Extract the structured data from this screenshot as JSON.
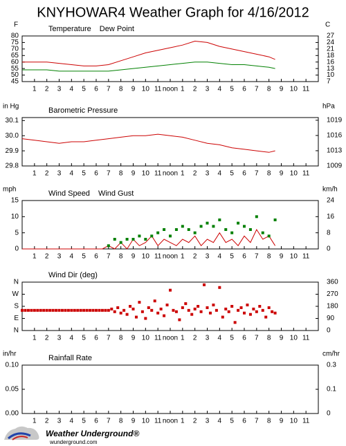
{
  "title": "KNYHOWAR4 Weather Graph for 4/16/2012",
  "logo": {
    "name": "Weather Underground®",
    "url": "wunderground.com"
  },
  "chart_data": [
    {
      "type": "line",
      "y_label": "F",
      "y2_label": "C",
      "xlim": [
        0,
        24
      ],
      "xticks": [
        1,
        2,
        3,
        4,
        5,
        6,
        7,
        8,
        9,
        10,
        11,
        {
          "value": 12,
          "label": "noon"
        },
        {
          "value": 13,
          "label": "1"
        },
        {
          "value": 14,
          "label": "2"
        },
        {
          "value": 15,
          "label": "3"
        },
        {
          "value": 16,
          "label": "4"
        },
        {
          "value": 17,
          "label": "5"
        },
        {
          "value": 18,
          "label": "6"
        },
        {
          "value": 19,
          "label": "7"
        },
        {
          "value": 20,
          "label": "8"
        },
        {
          "value": 21,
          "label": "9"
        },
        {
          "value": 22,
          "label": "10"
        },
        {
          "value": 23,
          "label": "11"
        }
      ],
      "ylim": [
        45,
        80
      ],
      "yticks": [
        45,
        50,
        55,
        60,
        65,
        70,
        75,
        80
      ],
      "y2lim": [
        7.22,
        26.67
      ],
      "y2ticks": [
        {
          "value": 7.22,
          "label": "7"
        },
        {
          "value": 10,
          "label": "10"
        },
        {
          "value": 12.78,
          "label": "13"
        },
        {
          "value": 15.56,
          "label": "16"
        },
        {
          "value": 18.33,
          "label": "18"
        },
        {
          "value": 21.11,
          "label": "21"
        },
        {
          "value": 23.89,
          "label": "24"
        },
        {
          "value": 26.67,
          "label": "27"
        }
      ],
      "series": [
        {
          "name": "Temperature",
          "color": "#cc0000",
          "mark": "line",
          "x": [
            0,
            1,
            2,
            3,
            4,
            5,
            6,
            7,
            8,
            9,
            10,
            11,
            12,
            13,
            14,
            15,
            16,
            17,
            18,
            19,
            20,
            20.5
          ],
          "values": [
            60,
            60,
            60,
            59,
            58,
            57,
            57,
            58,
            61,
            64,
            67,
            69,
            71,
            73,
            76,
            75,
            72,
            70,
            68,
            66,
            64,
            62
          ]
        },
        {
          "name": "Dew Point",
          "color": "#008000",
          "mark": "line",
          "x": [
            0,
            1,
            2,
            3,
            4,
            5,
            6,
            7,
            8,
            9,
            10,
            11,
            12,
            13,
            14,
            15,
            16,
            17,
            18,
            19,
            20,
            20.5
          ],
          "values": [
            54,
            54,
            54,
            53,
            53,
            53,
            53,
            53,
            54,
            55,
            56,
            57,
            58,
            59,
            60,
            60,
            59,
            58,
            58,
            57,
            56,
            55
          ]
        }
      ]
    },
    {
      "type": "line",
      "y_label": "in Hg",
      "y2_label": "hPa",
      "xlim": [
        0,
        24
      ],
      "xticks": [
        1,
        2,
        3,
        4,
        5,
        6,
        7,
        8,
        9,
        10,
        11,
        {
          "value": 12,
          "label": "noon"
        },
        {
          "value": 13,
          "label": "1"
        },
        {
          "value": 14,
          "label": "2"
        },
        {
          "value": 15,
          "label": "3"
        },
        {
          "value": 16,
          "label": "4"
        },
        {
          "value": 17,
          "label": "5"
        },
        {
          "value": 18,
          "label": "6"
        },
        {
          "value": 19,
          "label": "7"
        },
        {
          "value": 20,
          "label": "8"
        },
        {
          "value": 21,
          "label": "9"
        },
        {
          "value": 22,
          "label": "10"
        },
        {
          "value": 23,
          "label": "11"
        }
      ],
      "ylim": [
        29.8,
        30.12
      ],
      "yticks": [
        29.8,
        29.9,
        {
          "value": 30.0,
          "label": "30.0"
        },
        30.1
      ],
      "y2lim": [
        1009.1,
        1019.9
      ],
      "y2ticks": [
        {
          "value": 1009.1,
          "label": "1009"
        },
        {
          "value": 1012.5,
          "label": "1013"
        },
        {
          "value": 1015.9,
          "label": "1016"
        },
        {
          "value": 1019.3,
          "label": "1019"
        }
      ],
      "series": [
        {
          "name": "Barometric Pressure",
          "color": "#cc0000",
          "mark": "line",
          "x": [
            0,
            1,
            2,
            3,
            4,
            5,
            6,
            7,
            8,
            9,
            10,
            11,
            12,
            13,
            14,
            15,
            16,
            17,
            18,
            19,
            20,
            20.5
          ],
          "values": [
            29.98,
            29.97,
            29.96,
            29.95,
            29.96,
            29.96,
            29.97,
            29.98,
            29.99,
            30.0,
            30.0,
            30.01,
            30.0,
            29.99,
            29.97,
            29.95,
            29.94,
            29.92,
            29.91,
            29.9,
            29.89,
            29.9
          ]
        }
      ]
    },
    {
      "type": "line",
      "y_label": "mph",
      "y2_label": "km/h",
      "xlim": [
        0,
        24
      ],
      "xticks": [
        1,
        2,
        3,
        4,
        5,
        6,
        7,
        8,
        9,
        10,
        11,
        {
          "value": 12,
          "label": "noon"
        },
        {
          "value": 13,
          "label": "1"
        },
        {
          "value": 14,
          "label": "2"
        },
        {
          "value": 15,
          "label": "3"
        },
        {
          "value": 16,
          "label": "4"
        },
        {
          "value": 17,
          "label": "5"
        },
        {
          "value": 18,
          "label": "6"
        },
        {
          "value": 19,
          "label": "7"
        },
        {
          "value": 20,
          "label": "8"
        },
        {
          "value": 21,
          "label": "9"
        },
        {
          "value": 22,
          "label": "10"
        },
        {
          "value": 23,
          "label": "11"
        }
      ],
      "ylim": [
        0,
        15
      ],
      "yticks": [
        0,
        5,
        10,
        15
      ],
      "y2lim": [
        0,
        24.14
      ],
      "y2ticks": [
        0,
        {
          "value": 8.05,
          "label": "8"
        },
        {
          "value": 16.09,
          "label": "16"
        },
        {
          "value": 24.14,
          "label": "24"
        }
      ],
      "series": [
        {
          "name": "Wind Speed",
          "color": "#cc0000",
          "mark": "line",
          "x": [
            0,
            0.5,
            1,
            1.5,
            2,
            2.5,
            3,
            3.5,
            4,
            4.5,
            5,
            5.5,
            6,
            6.5,
            7,
            7.5,
            8,
            8.5,
            9,
            9.5,
            10,
            10.5,
            11,
            11.5,
            12,
            12.5,
            13,
            13.5,
            14,
            14.5,
            15,
            15.5,
            16,
            16.5,
            17,
            17.5,
            18,
            18.5,
            19,
            19.5,
            20,
            20.5
          ],
          "values": [
            0,
            0,
            0,
            0,
            0,
            0,
            0,
            0,
            0,
            0,
            0,
            0,
            0,
            0,
            1,
            0,
            2,
            0,
            3,
            1,
            2,
            4,
            1,
            3,
            2,
            1,
            3,
            2,
            4,
            1,
            3,
            2,
            5,
            2,
            3,
            1,
            4,
            2,
            6,
            3,
            4,
            1
          ]
        },
        {
          "name": "Wind Gust",
          "color": "#008000",
          "mark": "scatter",
          "x": [
            7,
            7.5,
            8,
            8.5,
            9,
            9.5,
            10,
            10.5,
            11,
            11.5,
            12,
            12.5,
            13,
            13.5,
            14,
            14.5,
            15,
            15.5,
            16,
            16.5,
            17,
            17.5,
            18,
            18.5,
            19,
            19.5,
            20,
            20.5
          ],
          "values": [
            1,
            3,
            2,
            3,
            3,
            4,
            3,
            4,
            5,
            6,
            4,
            6,
            7,
            6,
            5,
            7,
            8,
            7,
            9,
            6,
            5,
            8,
            7,
            6,
            10,
            5,
            4,
            9
          ]
        }
      ]
    },
    {
      "type": "scatter",
      "xlim": [
        0,
        24
      ],
      "xticks": [
        1,
        2,
        3,
        4,
        5,
        6,
        7,
        8,
        9,
        10,
        11,
        {
          "value": 12,
          "label": "noon"
        },
        {
          "value": 13,
          "label": "1"
        },
        {
          "value": 14,
          "label": "2"
        },
        {
          "value": 15,
          "label": "3"
        },
        {
          "value": 16,
          "label": "4"
        },
        {
          "value": 17,
          "label": "5"
        },
        {
          "value": 18,
          "label": "6"
        },
        {
          "value": 19,
          "label": "7"
        },
        {
          "value": 20,
          "label": "8"
        },
        {
          "value": 21,
          "label": "9"
        },
        {
          "value": 22,
          "label": "10"
        },
        {
          "value": 23,
          "label": "11"
        }
      ],
      "ylim": [
        0,
        360
      ],
      "yticks": [
        {
          "value": 0,
          "label": "N"
        },
        {
          "value": 90,
          "label": "E"
        },
        {
          "value": 180,
          "label": "S"
        },
        {
          "value": 270,
          "label": "W"
        },
        {
          "value": 360,
          "label": "N"
        }
      ],
      "y2lim": [
        0,
        360
      ],
      "y2ticks": [
        0,
        90,
        180,
        270,
        360
      ],
      "series": [
        {
          "name": "Wind Dir (deg)",
          "color": "#cc0000",
          "mark": "scatter",
          "x": [
            0,
            0.25,
            0.5,
            0.75,
            1,
            1.25,
            1.5,
            1.75,
            2,
            2.25,
            2.5,
            2.75,
            3,
            3.25,
            3.5,
            3.75,
            4,
            4.25,
            4.5,
            4.75,
            5,
            5.25,
            5.5,
            5.75,
            6,
            6.25,
            6.5,
            6.75,
            7,
            7.25,
            7.5,
            7.75,
            8,
            8.25,
            8.5,
            8.75,
            9,
            9.25,
            9.5,
            9.75,
            10,
            10.25,
            10.5,
            10.75,
            11,
            11.25,
            11.5,
            11.75,
            12,
            12.25,
            12.5,
            12.75,
            13,
            13.25,
            13.5,
            13.75,
            14,
            14.25,
            14.5,
            14.75,
            15,
            15.25,
            15.5,
            15.75,
            16,
            16.25,
            16.5,
            16.75,
            17,
            17.25,
            17.5,
            17.75,
            18,
            18.25,
            18.5,
            18.75,
            19,
            19.25,
            19.5,
            19.75,
            20,
            20.25,
            20.5
          ],
          "values": [
            150,
            150,
            150,
            150,
            150,
            150,
            150,
            150,
            150,
            150,
            150,
            150,
            150,
            150,
            150,
            150,
            150,
            150,
            150,
            150,
            150,
            150,
            150,
            150,
            150,
            150,
            150,
            150,
            150,
            160,
            140,
            170,
            130,
            150,
            120,
            180,
            160,
            100,
            210,
            140,
            90,
            170,
            150,
            220,
            130,
            160,
            110,
            190,
            300,
            150,
            140,
            80,
            170,
            200,
            150,
            120,
            160,
            180,
            140,
            340,
            170,
            130,
            190,
            150,
            320,
            100,
            160,
            140,
            180,
            60,
            150,
            170,
            130,
            190,
            120,
            160,
            140,
            180,
            150,
            100,
            170,
            140,
            130
          ]
        }
      ]
    },
    {
      "type": "line",
      "y_label": "in/hr",
      "y2_label": "cm/hr",
      "xlim": [
        0,
        24
      ],
      "xticks": [
        1,
        2,
        3,
        4,
        5,
        6,
        7,
        8,
        9,
        10,
        11,
        {
          "value": 12,
          "label": "noon"
        },
        {
          "value": 13,
          "label": "1"
        },
        {
          "value": 14,
          "label": "2"
        },
        {
          "value": 15,
          "label": "3"
        },
        {
          "value": 16,
          "label": "4"
        },
        {
          "value": 17,
          "label": "5"
        },
        {
          "value": 18,
          "label": "6"
        },
        {
          "value": 19,
          "label": "7"
        },
        {
          "value": 20,
          "label": "8"
        },
        {
          "value": 21,
          "label": "9"
        },
        {
          "value": 22,
          "label": "10"
        },
        {
          "value": 23,
          "label": "11"
        }
      ],
      "ylim": [
        0,
        0.1
      ],
      "yticks": [
        {
          "value": 0,
          "label": "0.00"
        },
        0.05,
        {
          "value": 0.1,
          "label": "0.10"
        }
      ],
      "y2lim": [
        0,
        0.254
      ],
      "y2ticks": [
        0,
        {
          "value": 0.127,
          "label": "0.1"
        },
        {
          "value": 0.254,
          "label": "0.3"
        }
      ],
      "series": [
        {
          "name": "Rainfall Rate",
          "color": "#cc0000",
          "mark": "line",
          "x": [],
          "values": []
        }
      ]
    }
  ]
}
